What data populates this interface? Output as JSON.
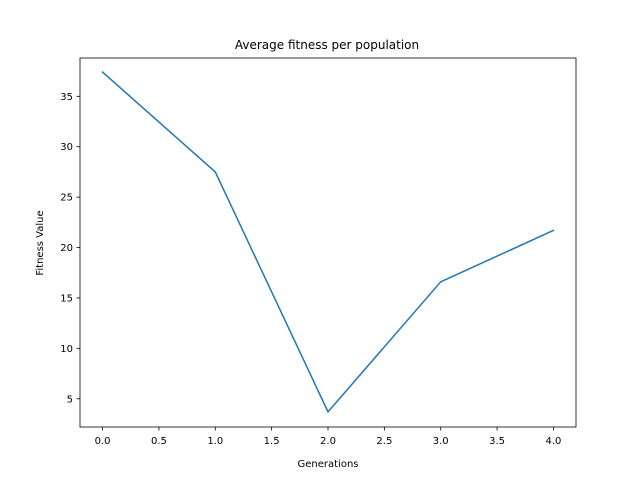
{
  "chart_data": {
    "type": "line",
    "title": "Average fitness per population",
    "xlabel": "Generations",
    "ylabel": "Fitness Value",
    "xlim": [
      -0.2,
      4.2
    ],
    "ylim": [
      2.2,
      38.8
    ],
    "xticks": [
      0.0,
      0.5,
      1.0,
      1.5,
      2.0,
      2.5,
      3.0,
      3.5,
      4.0
    ],
    "xtick_labels": [
      "0.0",
      "0.5",
      "1.0",
      "1.5",
      "2.0",
      "2.5",
      "3.0",
      "3.5",
      "4.0"
    ],
    "yticks": [
      5,
      10,
      15,
      20,
      25,
      30,
      35
    ],
    "ytick_labels": [
      "5",
      "10",
      "15",
      "20",
      "25",
      "30",
      "35"
    ],
    "grid": false,
    "series": [
      {
        "name": "Average fitness",
        "color": "#1f77b4",
        "x": [
          0,
          1,
          2,
          3,
          4
        ],
        "y": [
          37.4,
          27.5,
          3.7,
          16.6,
          21.7
        ]
      }
    ]
  }
}
